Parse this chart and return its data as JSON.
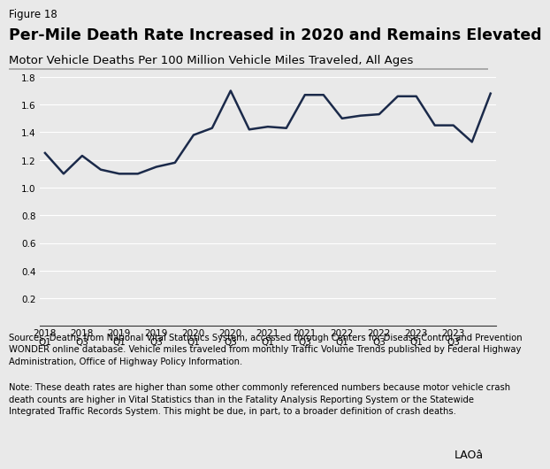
{
  "figure_label": "Figure 18",
  "title": "Per-Mile Death Rate Increased in 2020 and Remains Elevated",
  "subtitle": "Motor Vehicle Deaths Per 100 Million Vehicle Miles Traveled, All Ages",
  "x_labels": [
    "2018 Q1",
    "2018 Q3",
    "2019 Q1",
    "2019 Q3",
    "2020 Q1",
    "2020 Q3",
    "2021 Q1",
    "2021 Q3",
    "2022 Q1",
    "2022 Q3",
    "2023 Q1",
    "2023 Q3"
  ],
  "x_tick_positions": [
    0,
    2,
    4,
    6,
    8,
    10,
    12,
    14,
    16,
    18,
    20,
    22
  ],
  "y_values": [
    1.25,
    1.1,
    1.23,
    1.13,
    1.1,
    1.1,
    1.15,
    1.18,
    1.38,
    1.43,
    1.7,
    1.42,
    1.44,
    1.43,
    1.67,
    1.67,
    1.5,
    1.52,
    1.53,
    1.66,
    1.66,
    1.45,
    1.45,
    1.33,
    1.68
  ],
  "all_x": [
    0,
    1,
    2,
    3,
    4,
    5,
    6,
    7,
    8,
    9,
    10,
    11,
    12,
    13,
    14,
    15,
    16,
    17,
    18,
    19,
    20,
    21,
    22,
    23,
    24
  ],
  "ylim": [
    0,
    1.8
  ],
  "yticks": [
    0.2,
    0.4,
    0.6,
    0.8,
    1.0,
    1.2,
    1.4,
    1.6,
    1.8
  ],
  "line_color": "#1b2a4a",
  "line_width": 1.8,
  "background_color": "#e9e9e9",
  "plot_bg_color": "#e9e9e9",
  "grid_color": "#ffffff",
  "source_text": "Sources: Deaths from National Vital Statistics System, accessed through Centers for Disease Control and Prevention\nWONDER online database. Vehicle miles traveled from monthly Traffic Volume Trends published by Federal Highway\nAdministration, Office of Highway Policy Information.",
  "note_text": "Note: These death rates are higher than some other commonly referenced numbers because motor vehicle crash\ndeath counts are higher in Vital Statistics than in the Fatality Analysis Reporting System or the Statewide\nIntegrated Traffic Records System. This might be due, in part, to a broader definition of crash deaths.",
  "figure_label_fontsize": 8.5,
  "title_fontsize": 12.5,
  "subtitle_fontsize": 9.5,
  "tick_fontsize": 7.5,
  "source_fontsize": 7.2,
  "note_fontsize": 7.2
}
